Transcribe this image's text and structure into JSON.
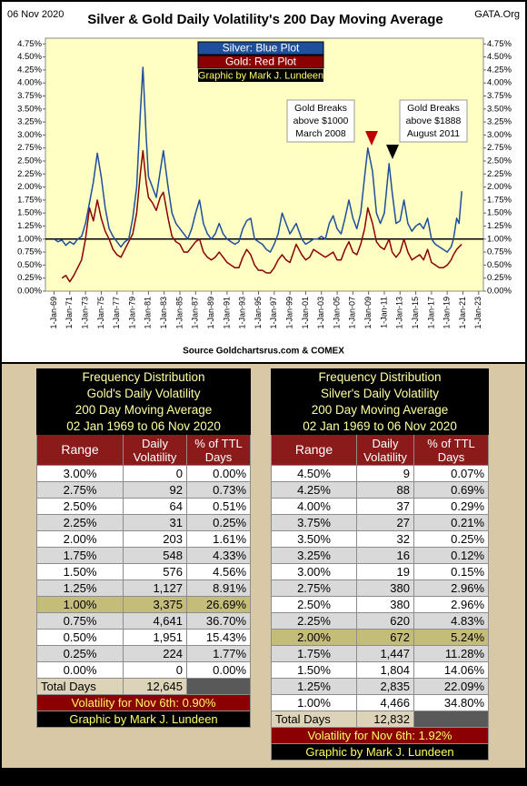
{
  "chart_data": {
    "type": "line",
    "title": "Silver & Gold Daily Volatility's  200 Day Moving Average",
    "date_label": "06 Nov 2020",
    "site": "GATA.Org",
    "source": "Source Goldchartsrus.com & COMEX",
    "credit": "Graphic by Mark J. Lundeen",
    "annotations": [
      {
        "lines": [
          "Gold Breaks",
          "above $1000",
          "March 2008"
        ]
      },
      {
        "lines": [
          "Gold Breaks",
          "above $1888",
          "August 2011"
        ]
      }
    ],
    "xlim": [
      1967.9,
      2023.6
    ],
    "ylim": [
      0,
      4.86
    ],
    "reference_line": 1,
    "xticks": [
      {
        "value": 1969,
        "label": "1-Jan-69"
      },
      {
        "value": 1971,
        "label": "1-Jan-71"
      },
      {
        "value": 1973,
        "label": "1-Jan-73"
      },
      {
        "value": 1975,
        "label": "1-Jan-75"
      },
      {
        "value": 1977,
        "label": "1-Jan-77"
      },
      {
        "value": 1979,
        "label": "1-Jan-79"
      },
      {
        "value": 1981,
        "label": "1-Jan-81"
      },
      {
        "value": 1983,
        "label": "1-Jan-83"
      },
      {
        "value": 1985,
        "label": "1-Jan-85"
      },
      {
        "value": 1987,
        "label": "1-Jan-87"
      },
      {
        "value": 1989,
        "label": "1-Jan-89"
      },
      {
        "value": 1991,
        "label": "1-Jan-91"
      },
      {
        "value": 1993,
        "label": "1-Jan-93"
      },
      {
        "value": 1995,
        "label": "1-Jan-95"
      },
      {
        "value": 1997,
        "label": "1-Jan-97"
      },
      {
        "value": 1999,
        "label": "1-Jan-99"
      },
      {
        "value": 2001,
        "label": "1-Jan-01"
      },
      {
        "value": 2003,
        "label": "1-Jan-03"
      },
      {
        "value": 2005,
        "label": "1-Jan-05"
      },
      {
        "value": 2007,
        "label": "1-Jan-07"
      },
      {
        "value": 2009,
        "label": "1-Jan-09"
      },
      {
        "value": 2011,
        "label": "1-Jan-11"
      },
      {
        "value": 2013,
        "label": "1-Jan-13"
      },
      {
        "value": 2015,
        "label": "1-Jan-15"
      },
      {
        "value": 2017,
        "label": "1-Jan-17"
      },
      {
        "value": 2019,
        "label": "1-Jan-19"
      },
      {
        "value": 2021,
        "label": "1-Jan-21"
      },
      {
        "value": 2023,
        "label": "1-Jan-23"
      }
    ],
    "yticks": [
      {
        "value": 0,
        "label": "0.00%"
      },
      {
        "value": 0.25,
        "label": "0.25%"
      },
      {
        "value": 0.5,
        "label": "0.50%"
      },
      {
        "value": 0.75,
        "label": "0.75%"
      },
      {
        "value": 1,
        "label": "1.00%"
      },
      {
        "value": 1.25,
        "label": "1.25%"
      },
      {
        "value": 1.5,
        "label": "1.50%"
      },
      {
        "value": 1.75,
        "label": "1.75%"
      },
      {
        "value": 2,
        "label": "2.00%"
      },
      {
        "value": 2.25,
        "label": "2.25%"
      },
      {
        "value": 2.5,
        "label": "2.50%"
      },
      {
        "value": 2.75,
        "label": "2.75%"
      },
      {
        "value": 3,
        "label": "3.00%"
      },
      {
        "value": 3.25,
        "label": "3.25%"
      },
      {
        "value": 3.5,
        "label": "3.50%"
      },
      {
        "value": 3.75,
        "label": "3.75%"
      },
      {
        "value": 4,
        "label": "4.00%"
      },
      {
        "value": 4.25,
        "label": "4.25%"
      },
      {
        "value": 4.5,
        "label": "4.50%"
      },
      {
        "value": 4.75,
        "label": "4.75%"
      }
    ],
    "x": [
      1969.0,
      1969.5,
      1970.0,
      1970.5,
      1971.0,
      1971.5,
      1972.0,
      1972.5,
      1973.0,
      1973.5,
      1974.0,
      1974.5,
      1975.0,
      1975.5,
      1976.0,
      1976.5,
      1977.0,
      1977.5,
      1978.0,
      1978.5,
      1979.0,
      1979.5,
      1980.0,
      1980.3,
      1980.7,
      1981.0,
      1981.5,
      1982.0,
      1982.5,
      1982.9,
      1983.5,
      1984.0,
      1984.5,
      1985.0,
      1985.5,
      1986.0,
      1986.5,
      1987.0,
      1987.5,
      1988.0,
      1988.5,
      1989.0,
      1989.5,
      1990.0,
      1990.5,
      1991.0,
      1991.5,
      1992.0,
      1992.5,
      1993.0,
      1993.5,
      1994.0,
      1994.5,
      1995.0,
      1995.5,
      1996.0,
      1996.5,
      1997.0,
      1997.5,
      1998.0,
      1998.5,
      1999.0,
      1999.8,
      2000.5,
      2001.0,
      2001.5,
      2002.0,
      2002.5,
      2003.0,
      2003.5,
      2004.0,
      2004.5,
      2005.0,
      2005.5,
      2006.0,
      2006.5,
      2007.0,
      2007.5,
      2008.0,
      2008.5,
      2008.9,
      2009.5,
      2010.0,
      2010.5,
      2011.0,
      2011.6,
      2012.0,
      2012.5,
      2013.0,
      2013.5,
      2014.0,
      2014.5,
      2015.0,
      2015.5,
      2016.0,
      2016.5,
      2017.0,
      2017.5,
      2018.0,
      2018.5,
      2019.0,
      2019.5,
      2019.8,
      2020.2,
      2020.5,
      2020.85
    ],
    "series": [
      {
        "name": "Silver: Blue Plot",
        "color": "#1f4e9c",
        "values": [
          1.0,
          0.95,
          0.98,
          0.88,
          0.95,
          0.9,
          1.0,
          1.05,
          1.3,
          1.7,
          2.1,
          2.65,
          2.2,
          1.6,
          1.2,
          1.05,
          0.95,
          0.85,
          0.95,
          1.0,
          1.4,
          2.0,
          3.5,
          4.3,
          3.0,
          2.2,
          2.0,
          1.8,
          2.3,
          2.7,
          2.0,
          1.5,
          1.3,
          1.2,
          1.1,
          1.0,
          1.2,
          1.5,
          1.75,
          1.3,
          1.1,
          1.0,
          1.1,
          1.3,
          1.1,
          1.0,
          0.95,
          0.9,
          0.95,
          1.2,
          1.35,
          1.4,
          1.0,
          0.95,
          0.9,
          0.8,
          0.75,
          0.9,
          1.1,
          1.5,
          1.3,
          1.1,
          1.3,
          1.0,
          0.9,
          0.95,
          1.0,
          1.0,
          1.05,
          1.0,
          1.3,
          1.45,
          1.2,
          1.1,
          1.4,
          1.75,
          1.4,
          1.2,
          1.5,
          2.2,
          2.75,
          2.3,
          1.5,
          1.3,
          1.5,
          2.45,
          1.9,
          1.3,
          1.35,
          1.75,
          1.3,
          1.15,
          1.25,
          1.3,
          1.2,
          1.4,
          1.0,
          0.9,
          0.85,
          0.8,
          0.75,
          0.85,
          1.0,
          1.4,
          1.3,
          1.92
        ]
      },
      {
        "name": "Gold: Red Plot",
        "color": "#8b0000",
        "values": [
          null,
          null,
          0.25,
          0.3,
          0.18,
          0.3,
          0.45,
          0.6,
          1.0,
          1.6,
          1.35,
          1.75,
          1.4,
          1.15,
          1.0,
          0.8,
          0.7,
          0.65,
          0.8,
          0.95,
          1.1,
          1.5,
          2.3,
          2.7,
          2.1,
          1.8,
          1.7,
          1.55,
          1.8,
          1.9,
          1.4,
          1.05,
          0.95,
          0.9,
          0.75,
          0.75,
          0.85,
          0.95,
          1.0,
          0.75,
          0.65,
          0.6,
          0.65,
          0.75,
          0.65,
          0.55,
          0.5,
          0.45,
          0.45,
          0.65,
          0.8,
          0.7,
          0.5,
          0.4,
          0.4,
          0.35,
          0.35,
          0.45,
          0.6,
          0.7,
          0.6,
          0.55,
          0.9,
          0.7,
          0.6,
          0.65,
          0.8,
          0.75,
          0.7,
          0.65,
          0.7,
          0.75,
          0.6,
          0.6,
          0.8,
          0.95,
          0.75,
          0.7,
          0.9,
          1.2,
          1.6,
          1.3,
          0.95,
          0.85,
          0.8,
          1.0,
          0.75,
          0.65,
          0.75,
          1.0,
          0.75,
          0.6,
          0.65,
          0.7,
          0.6,
          0.8,
          0.55,
          0.5,
          0.45,
          0.45,
          0.5,
          0.6,
          0.7,
          0.8,
          0.85,
          0.9
        ]
      }
    ]
  },
  "gold_table": {
    "title_lines": [
      "Frequency Distribution",
      "Gold's Daily Volatility",
      "200 Day Moving Average",
      "02 Jan 1969 to 06 Nov 2020"
    ],
    "headers": [
      "Range",
      "Daily Volatility",
      "% of TTL Days"
    ],
    "rows": [
      [
        "3.00%",
        "0",
        "0.00%"
      ],
      [
        "2.75%",
        "92",
        "0.73%"
      ],
      [
        "2.50%",
        "64",
        "0.51%"
      ],
      [
        "2.25%",
        "31",
        "0.25%"
      ],
      [
        "2.00%",
        "203",
        "1.61%"
      ],
      [
        "1.75%",
        "548",
        "4.33%"
      ],
      [
        "1.50%",
        "576",
        "4.56%"
      ],
      [
        "1.25%",
        "1,127",
        "8.91%"
      ],
      [
        "1.00%",
        "3,375",
        "26.69%"
      ],
      [
        "0.75%",
        "4,641",
        "36.70%"
      ],
      [
        "0.50%",
        "1,951",
        "15.43%"
      ],
      [
        "0.25%",
        "224",
        "1.77%"
      ],
      [
        "0.00%",
        "0",
        "0.00%"
      ]
    ],
    "highlight_row": 8,
    "total": [
      "Total Days",
      "12,645"
    ],
    "footer": "Volatility for Nov 6th: 0.90%",
    "credit": "Graphic by Mark J. Lundeen"
  },
  "silver_table": {
    "title_lines": [
      "Frequency Distribution",
      "Silver's Daily Volatility",
      "200 Day Moving Average",
      "02 Jan 1969 to 06 Nov 2020"
    ],
    "headers": [
      "Range",
      "Daily Volatility",
      "% of TTL Days"
    ],
    "rows": [
      [
        "4.50%",
        "9",
        "0.07%"
      ],
      [
        "4.25%",
        "88",
        "0.69%"
      ],
      [
        "4.00%",
        "37",
        "0.29%"
      ],
      [
        "3.75%",
        "27",
        "0.21%"
      ],
      [
        "3.50%",
        "32",
        "0.25%"
      ],
      [
        "3.25%",
        "16",
        "0.12%"
      ],
      [
        "3.00%",
        "19",
        "0.15%"
      ],
      [
        "2.75%",
        "380",
        "2.96%"
      ],
      [
        "2.50%",
        "380",
        "2.96%"
      ],
      [
        "2.25%",
        "620",
        "4.83%"
      ],
      [
        "2.00%",
        "672",
        "5.24%"
      ],
      [
        "1.75%",
        "1,447",
        "11.28%"
      ],
      [
        "1.50%",
        "1,804",
        "14.06%"
      ],
      [
        "1.25%",
        "2,835",
        "22.09%"
      ],
      [
        "1.00%",
        "4,466",
        "34.80%"
      ]
    ],
    "highlight_row": 10,
    "total": [
      "Total Days",
      "12,832"
    ],
    "footer": "Volatility for Nov 6th: 1.92%",
    "credit": "Graphic by Mark J. Lundeen"
  }
}
